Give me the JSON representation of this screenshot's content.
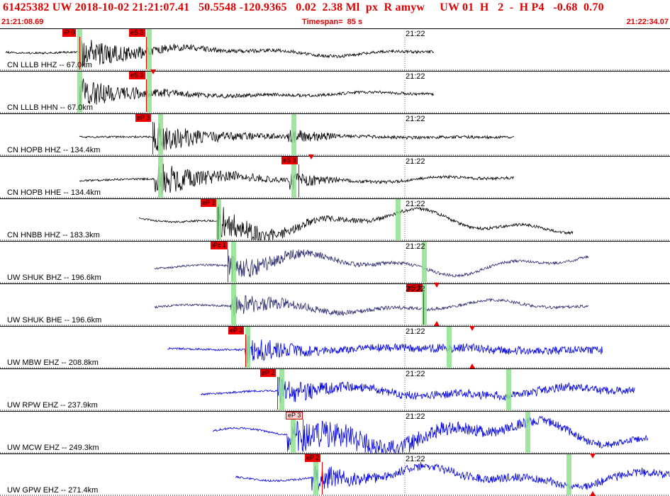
{
  "header": {
    "title": "61425382 UW 2018-10-02 21:21:07.41   50.5548 -120.9365   0.02  2.38 Ml  px  R amyw     UW 01  H   2  -  H P4   -0.68  0.70",
    "start_time": "21:21:08.69",
    "timespan": "Timespan=  85 s",
    "end_time": "21:22:34.07"
  },
  "colors": {
    "title": "#e00000",
    "pick": "#ee0000",
    "window_band": "#8fe08f",
    "trace_black": "#000000",
    "trace_navy": "#2a2a6e",
    "trace_blue": "#0000e0"
  },
  "time_tick": "21:22",
  "traces": [
    {
      "label": "CN LLLB HHZ -- 67.0km",
      "color": "#000000",
      "picks": [
        {
          "text": "iP 0",
          "style": "solid",
          "pos": 0.118
        },
        {
          "text": "eS 3",
          "style": "solid",
          "pos": 0.218
        }
      ],
      "windows": [
        0.115,
        0.219
      ]
    },
    {
      "label": "CN LLLB HHN -- 67.0km",
      "color": "#000000",
      "picks": [
        {
          "text": "eS 3",
          "style": "solid",
          "pos": 0.218
        }
      ],
      "windows": [
        0.115,
        0.219
      ]
    },
    {
      "label": "CN HOPB HHZ -- 134.4km",
      "color": "#000000",
      "picks": [
        {
          "text": "eP 3",
          "style": "solid",
          "pos": 0.228
        }
      ],
      "windows": [
        0.236,
        0.435
      ]
    },
    {
      "label": "CN HOPB HHE -- 134.4km",
      "color": "#000000",
      "picks": [
        {
          "text": "eS 3",
          "style": "solid",
          "pos": 0.446
        }
      ],
      "windows": [
        0.236,
        0.435
      ]
    },
    {
      "label": "CN HNBB HHZ -- 183.3km",
      "color": "#000000",
      "picks": [
        {
          "text": "eP 2",
          "style": "solid",
          "pos": 0.325
        }
      ],
      "windows": [
        0.323,
        0.59
      ]
    },
    {
      "label": "UW SHUK BHZ -- 196.6km",
      "color": "#2a2a6e",
      "picks": [
        {
          "text": "iPc 1",
          "style": "solid",
          "pos": 0.34
        }
      ],
      "windows": [
        0.345,
        0.63
      ]
    },
    {
      "label": "UW SHUK BHE -- 196.6km",
      "color": "#2a2a6e",
      "picks": [
        {
          "text": "eS 3",
          "style": "solid",
          "pos": 0.632
        }
      ],
      "windows": [
        0.345,
        0.63
      ]
    },
    {
      "label": "UW MBW EHZ -- 208.8km",
      "color": "#0000e0",
      "picks": [
        {
          "text": "eP 3",
          "style": "solid",
          "pos": 0.366
        }
      ],
      "windows": [
        0.366,
        0.667
      ]
    },
    {
      "label": "UW RPW EHZ -- 237.9km",
      "color": "#0000e0",
      "picks": [
        {
          "text": "eP 2",
          "style": "solid",
          "pos": 0.414
        }
      ],
      "windows": [
        0.417,
        0.756
      ]
    },
    {
      "label": "UW MCW EHZ -- 249.3km",
      "color": "#0000e0",
      "picks": [
        {
          "text": "eP 3",
          "style": "light",
          "pos": 0.452
        }
      ],
      "windows": [
        0.434,
        0.784
      ]
    },
    {
      "label": "UW GPW EHZ -- 271.4km",
      "color": "#0000e0",
      "picks": [
        {
          "text": "eP 2",
          "style": "solid",
          "pos": 0.48
        }
      ],
      "windows": [
        0.468,
        0.845
      ]
    }
  ]
}
